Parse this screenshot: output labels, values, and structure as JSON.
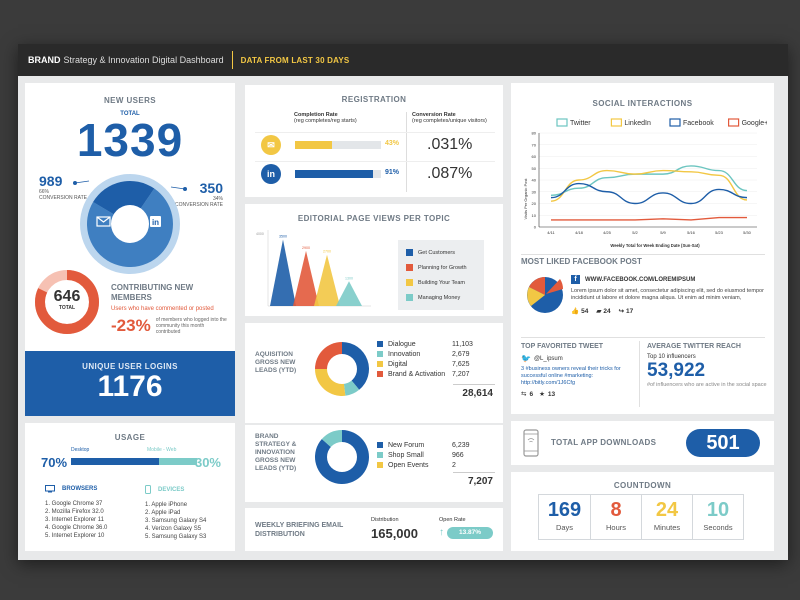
{
  "header": {
    "brand": "BRAND",
    "title": "Strategy & Innovation Digital Dashboard",
    "period": "DATA FROM LAST 30 DAYS"
  },
  "new_users": {
    "title": "NEW USERS",
    "total_label": "TOTAL",
    "total": "1339",
    "left_value": "989",
    "left_pct": "66%",
    "left_label": "CONVERSION RATE",
    "right_value": "350",
    "right_pct": "34%",
    "right_label": "CONVERSION RATE",
    "share": [
      0.74,
      0.26
    ]
  },
  "contributing": {
    "value": "646",
    "value_label": "TOTAL",
    "title": "CONTRIBUTING NEW MEMBERS",
    "subtitle": "Users who have commented or posted",
    "change": "-23%",
    "note": "of members who logged into the community this month contributed",
    "ring_fraction": 0.82
  },
  "logins": {
    "title": "UNIQUE USER LOGINS",
    "value": "1176"
  },
  "usage": {
    "title": "USAGE",
    "desktop_label": "Desktop",
    "mobile_label": "Mobile - Web",
    "desktop_pct": "70%",
    "mobile_pct": "30%",
    "desktop_share": 0.7,
    "browsers_title": "BROWSERS",
    "browsers": [
      "1. Google Chrome 37",
      "2. Mozilla Firefox 32.0",
      "3. Internet Explorer 11",
      "4. Google Chrome 36.0",
      "5. Internet Explorer 10"
    ],
    "devices_title": "DEVICES",
    "devices": [
      "1. Apple iPhone",
      "2. Apple iPad",
      "3. Samsung Galaxy S4",
      "4. Verizon Galaxy S5",
      "5. Samsung Galaxy S3"
    ]
  },
  "registration": {
    "title": "REGISTRATION",
    "col1_title": "Completion Rate",
    "col1_sub": "(reg completes/reg starts)",
    "col2_title": "Conversion Rate",
    "col2_sub": "(reg completes/unique visitors)",
    "rows": [
      {
        "icon": "email",
        "completion": 0.43,
        "completion_label": "43%",
        "conversion": ".031%",
        "color": "#f2c744",
        "label_color": "#f2c744"
      },
      {
        "icon": "in",
        "completion": 0.91,
        "completion_label": "91%",
        "conversion": ".087%",
        "color": "#1e5ea8",
        "label_color": "#1e5ea8"
      }
    ]
  },
  "editorial": {
    "title": "EDITORIAL PAGE VIEWS PER TOPIC",
    "y_label": "4000",
    "legend": [
      "Get Customers",
      "Planning for Growth",
      "Building Your Team",
      "Managing Money"
    ]
  },
  "chart_data": [
    {
      "type": "bar",
      "title": "EDITORIAL PAGE VIEWS PER TOPIC",
      "categories": [
        "Get Customers",
        "Planning for Growth",
        "Building Your Team",
        "Managing Money"
      ],
      "values": [
        3500,
        2900,
        2700,
        1300
      ],
      "ylim": [
        0,
        4000
      ],
      "colors": [
        "#1e5ea8",
        "#e25a3c",
        "#f2c744",
        "#7ccbc8"
      ]
    },
    {
      "type": "line",
      "title": "SOCIAL INTERACTIONS",
      "xlabel": "Weekly Total for Week Ending Date (Sun-Sat)",
      "ylabel": "Visits Per Organic Post",
      "categories": [
        "4/11",
        "4/18",
        "4/25",
        "5/2",
        "5/9",
        "5/16",
        "5/23",
        "5/30"
      ],
      "ylim": [
        0,
        80
      ],
      "yticks": [
        0,
        10,
        20,
        30,
        40,
        50,
        60,
        70,
        80
      ],
      "series": [
        {
          "name": "Twitter",
          "color": "#6cc5c0",
          "values": [
            27,
            33,
            42,
            45,
            45,
            52,
            48,
            31
          ]
        },
        {
          "name": "LinkedIn",
          "color": "#f2c744",
          "values": [
            22,
            40,
            48,
            45,
            48,
            47,
            44,
            23
          ]
        },
        {
          "name": "Facebook",
          "color": "#1e5ea8",
          "values": [
            25,
            37,
            30,
            20,
            29,
            20,
            32,
            25
          ]
        },
        {
          "name": "Google+",
          "color": "#e25a3c",
          "values": [
            6,
            6,
            6,
            6,
            7,
            6,
            8,
            8
          ]
        }
      ]
    }
  ],
  "acquisition": {
    "title": "AQUISITION GROSS NEW LEADS (YTD)",
    "items": [
      {
        "label": "Dialogue",
        "value": "11,103",
        "color": "#1e5ea8"
      },
      {
        "label": "Innovation",
        "value": "2,679",
        "color": "#7ccbc8"
      },
      {
        "label": "Digital",
        "value": "7,625",
        "color": "#f2c744"
      },
      {
        "label": "Brand & Activation",
        "value": "7,207",
        "color": "#e25a3c"
      }
    ],
    "total": "28,614",
    "shares": [
      0.39,
      0.09,
      0.27,
      0.25
    ]
  },
  "brand_strategy": {
    "title": "BRAND STRATEGY & INNOVATION GROSS NEW LEADS (YTD)",
    "items": [
      {
        "label": "New Forum",
        "value": "6,239",
        "color": "#1e5ea8"
      },
      {
        "label": "Shop Small",
        "value": "966",
        "color": "#7ccbc8"
      },
      {
        "label": "Open Events",
        "value": "2",
        "color": "#f2c744"
      }
    ],
    "total": "7,207",
    "shares": [
      0.866,
      0.134,
      0.0
    ]
  },
  "weekly": {
    "title": "WEEKLY BRIEFING EMAIL DISTRIBUTION",
    "dist_label": "Distribution",
    "dist_value": "165,000",
    "open_label": "Open Rate",
    "open_value": "13.87%"
  },
  "social": {
    "title": "SOCIAL INTERACTIONS",
    "xlabel": "Weekly Total for Week Ending Date (Sun-Sat)",
    "ylabel": "Visits Per Organic Post"
  },
  "facebook_post": {
    "title": "MOST LIKED FACEBOOK POST",
    "url": "WWW.FACEBOOK.COM/LOREMIPSUM",
    "text": "Lorem ipsum dolor sit amet, consectetur adipiscing elit, sed do eiusmod tempor incididunt ut labore et dolore magna aliqua. Ut enim ad minim veniam,",
    "likes": "54",
    "comments": "24",
    "shares": "17"
  },
  "tweet": {
    "title": "TOP FAVORITED TWEET",
    "handle": "@L_ipsum",
    "text": "3 #business owners reveal their tricks for successful online #marketing:",
    "link": "http://bitly.com/1J6Cfg",
    "retweets": "6",
    "favorites": "13"
  },
  "reach": {
    "title": "AVERAGE TWITTER REACH",
    "subtitle": "Top 10 influencers",
    "value": "53,922",
    "note": "#of influencers who are active in the social space"
  },
  "app": {
    "title": "TOTAL APP DOWNLOADS",
    "value": "501"
  },
  "countdown": {
    "title": "COUNTDOWN",
    "items": [
      {
        "value": "169",
        "label": "Days",
        "color": "#1e5ea8"
      },
      {
        "value": "8",
        "label": "Hours",
        "color": "#e25a3c"
      },
      {
        "value": "24",
        "label": "Minutes",
        "color": "#f2c744"
      },
      {
        "value": "10",
        "label": "Seconds",
        "color": "#7ccbc8"
      }
    ]
  }
}
